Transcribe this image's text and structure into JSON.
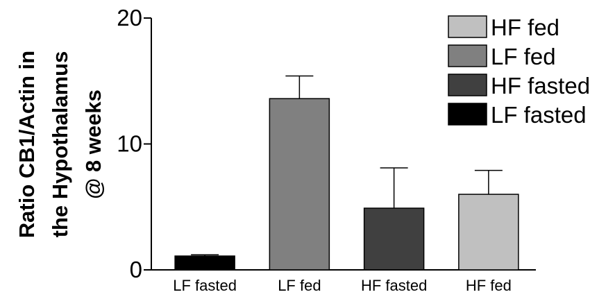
{
  "chart_data": {
    "type": "bar",
    "title": "",
    "ylabel_lines": [
      "Ratio CB1/Actin in",
      "the Hypothalamus",
      "@ 8 weeks"
    ],
    "xlabel": "",
    "ylim": [
      0,
      20
    ],
    "yticks": [
      0,
      10,
      20
    ],
    "categories": [
      "LF fasted",
      "LF fed",
      "HF fasted",
      "HF fed"
    ],
    "values": [
      1.1,
      13.6,
      4.9,
      6.0
    ],
    "errors": [
      0.1,
      1.8,
      3.2,
      1.9
    ],
    "colors": [
      "#000000",
      "#808080",
      "#404040",
      "#c0c0c0"
    ],
    "legend": {
      "position": "top-right",
      "entries": [
        {
          "label": "HF fed",
          "color": "#c0c0c0"
        },
        {
          "label": "LF fed",
          "color": "#808080"
        },
        {
          "label": "HF fasted",
          "color": "#404040"
        },
        {
          "label": "LF fasted",
          "color": "#000000"
        }
      ]
    },
    "grid": false
  }
}
